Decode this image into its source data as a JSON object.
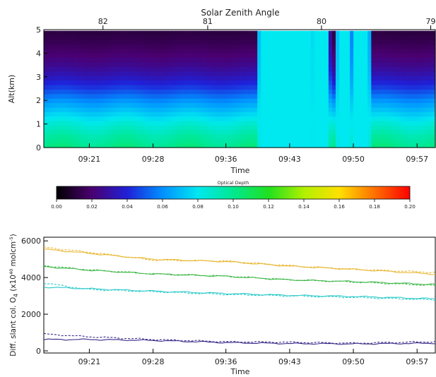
{
  "heatmap": {
    "title": "Solar Zenith Angle",
    "xlabel": "Time",
    "ylabel": "Alt(km)",
    "x_ticks": [
      "09:21",
      "09:28",
      "09:36",
      "09:43",
      "09:50",
      "09:57"
    ],
    "y_ticks": [
      "0",
      "1",
      "2",
      "3",
      "4",
      "5"
    ],
    "top_ticks": [
      "82",
      "81",
      "80",
      "79"
    ],
    "ylim": [
      0,
      5
    ]
  },
  "colorbar": {
    "label": "Optical Depth",
    "ticks": [
      "0.00",
      "0.02",
      "0.04",
      "0.06",
      "0.08",
      "0.10",
      "0.12",
      "0.14",
      "0.16",
      "0.18",
      "0.20"
    ],
    "range": [
      0,
      0.2
    ]
  },
  "lineplot": {
    "xlabel": "Time",
    "ylabel_main": "Diff. slant col. O",
    "ylabel_sub": "4",
    "ylabel_units": "(x10",
    "ylabel_exp": "40",
    "ylabel_units2": "molcm",
    "ylabel_exp2": "-5",
    "x_ticks": [
      "09:21",
      "09:28",
      "09:36",
      "09:43",
      "09:50",
      "09:57"
    ],
    "y_ticks": [
      "0",
      "2000",
      "4000",
      "6000"
    ]
  },
  "chart_data": [
    {
      "type": "heatmap",
      "title": "Solar Zenith Angle",
      "xlabel": "Time",
      "ylabel": "Alt(km)",
      "x_range": [
        "09:16",
        "09:59"
      ],
      "ylim": [
        0,
        5
      ],
      "value_range": [
        0,
        0.2
      ],
      "colorbar_label": "Optical Depth",
      "top_axis_ticks": [
        {
          "time": "09:22.5",
          "sza": 82
        },
        {
          "time": "09:34",
          "sza": 81
        },
        {
          "time": "09:46.5",
          "sza": 80
        },
        {
          "time": "09:58.5",
          "sza": 79
        }
      ],
      "profile_clear_sky": [
        {
          "alt": 0,
          "value": 0.105
        },
        {
          "alt": 0.5,
          "value": 0.098
        },
        {
          "alt": 1,
          "value": 0.088
        },
        {
          "alt": 1.5,
          "value": 0.075
        },
        {
          "alt": 2,
          "value": 0.062
        },
        {
          "alt": 2.5,
          "value": 0.047
        },
        {
          "alt": 3,
          "value": 0.035
        },
        {
          "alt": 3.5,
          "value": 0.026
        },
        {
          "alt": 4,
          "value": 0.02
        },
        {
          "alt": 4.5,
          "value": 0.015
        },
        {
          "alt": 4.9,
          "value": 0.012
        }
      ],
      "saturated_columns": [
        {
          "start": "09:39.7",
          "end": "09:45.5",
          "value": 0.08
        },
        {
          "start": "09:45.9",
          "end": "09:47.2",
          "value": 0.08
        },
        {
          "start": "09:48.3",
          "end": "09:49.7",
          "value": 0.08
        },
        {
          "start": "09:50.2",
          "end": "09:51.7",
          "value": 0.08
        }
      ]
    },
    {
      "type": "line",
      "xlabel": "Time",
      "ylabel": "Diff. slant col. O4 (x10^40 molcm^-5)",
      "x_range": [
        "09:16",
        "09:59"
      ],
      "ylim": [
        0,
        6200
      ],
      "series": [
        {
          "color": "#e8b630",
          "style": "solid",
          "x": [
            "09:16",
            "09:21",
            "09:28",
            "09:36",
            "09:43",
            "09:50",
            "09:59"
          ],
          "values": [
            5550,
            5320,
            5000,
            4870,
            4620,
            4450,
            4180
          ]
        },
        {
          "color": "#e8b630",
          "style": "dashed",
          "x": [
            "09:16",
            "09:21",
            "09:28",
            "09:36",
            "09:43",
            "09:50",
            "09:59"
          ],
          "values": [
            5650,
            5380,
            4950,
            4900,
            4650,
            4450,
            4280
          ]
        },
        {
          "color": "#3fb84a",
          "style": "solid",
          "x": [
            "09:16",
            "09:21",
            "09:28",
            "09:36",
            "09:43",
            "09:50",
            "09:59"
          ],
          "values": [
            4600,
            4400,
            4200,
            4070,
            3870,
            3780,
            3620
          ]
        },
        {
          "color": "#3fb84a",
          "style": "dashed",
          "x": [
            "09:16",
            "09:21",
            "09:28",
            "09:36",
            "09:43",
            "09:50",
            "09:59"
          ],
          "values": [
            4650,
            4420,
            4200,
            4080,
            3880,
            3760,
            3560
          ]
        },
        {
          "color": "#28c8c8",
          "style": "solid",
          "x": [
            "09:16",
            "09:21",
            "09:28",
            "09:36",
            "09:43",
            "09:50",
            "09:59"
          ],
          "values": [
            3480,
            3390,
            3260,
            3130,
            3030,
            2970,
            2840
          ]
        },
        {
          "color": "#28c8c8",
          "style": "dashed",
          "x": [
            "09:16",
            "09:21",
            "09:28",
            "09:36",
            "09:43",
            "09:50",
            "09:59"
          ],
          "values": [
            3700,
            3350,
            3230,
            3080,
            3000,
            2920,
            2780
          ]
        },
        {
          "color": "#3a2a8a",
          "style": "solid",
          "x": [
            "09:16",
            "09:21",
            "09:28",
            "09:36",
            "09:43",
            "09:50",
            "09:59"
          ],
          "values": [
            620,
            620,
            570,
            450,
            400,
            380,
            420
          ]
        },
        {
          "color": "#3a2a8a",
          "style": "dashed",
          "x": [
            "09:16",
            "09:21",
            "09:28",
            "09:36",
            "09:43",
            "09:50",
            "09:59"
          ],
          "values": [
            920,
            770,
            620,
            500,
            470,
            420,
            500
          ]
        }
      ]
    }
  ]
}
